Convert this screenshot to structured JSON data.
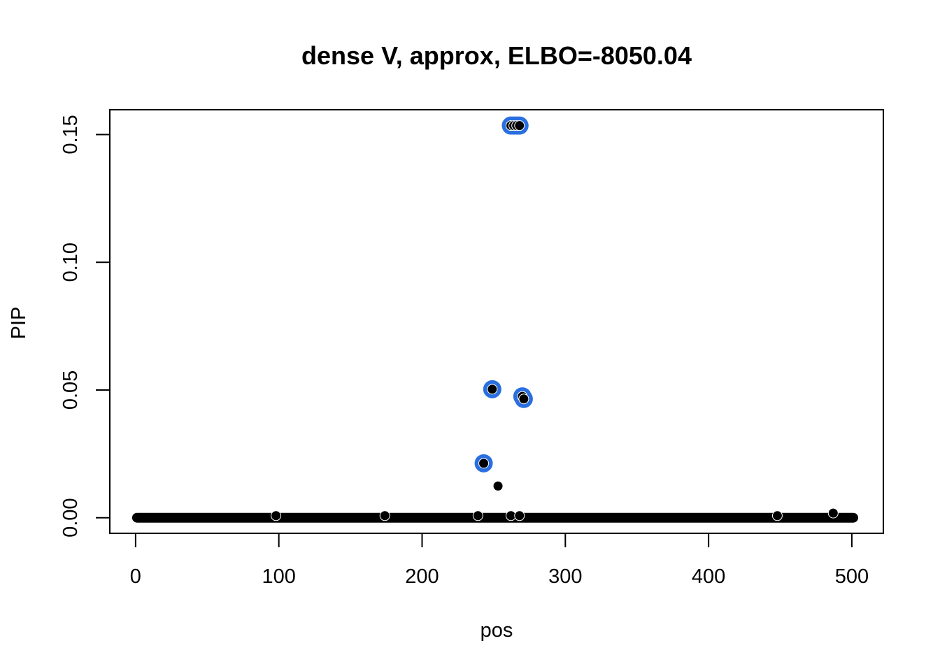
{
  "chart_data": {
    "type": "scatter",
    "title": "dense V, approx, ELBO=-8050.04",
    "xlabel": "pos",
    "ylabel": "PIP",
    "xlim": [
      -18,
      522
    ],
    "ylim": [
      -0.0061,
      0.1597
    ],
    "xticks": [
      0,
      100,
      200,
      300,
      400,
      500
    ],
    "xtick_labels": [
      "0",
      "100",
      "200",
      "300",
      "400",
      "500"
    ],
    "yticks": [
      0,
      0.05,
      0.1,
      0.15
    ],
    "ytick_labels": [
      "0.00",
      "0.05",
      "0.10",
      "0.15"
    ],
    "grid": false,
    "legend": "none",
    "colors": {
      "points": "#000000",
      "highlight": "#2a6fe0"
    },
    "baseline": {
      "x_start": 1,
      "x_end": 501,
      "y": 0
    },
    "series": [
      {
        "values": [
          {
            "x": 243,
            "y": 0.0213
          },
          {
            "x": 249,
            "y": 0.0503
          },
          {
            "x": 253,
            "y": 0.0124
          },
          {
            "x": 262,
            "y": 0.1535
          },
          {
            "x": 264,
            "y": 0.1535
          },
          {
            "x": 266,
            "y": 0.1535
          },
          {
            "x": 268,
            "y": 0.1535
          },
          {
            "x": 270,
            "y": 0.0475
          },
          {
            "x": 271,
            "y": 0.0465
          },
          {
            "x": 98,
            "y": 0.0008
          },
          {
            "x": 174,
            "y": 0.0008
          },
          {
            "x": 239,
            "y": 0.0008
          },
          {
            "x": 262,
            "y": 0.0008
          },
          {
            "x": 268,
            "y": 0.0008
          },
          {
            "x": 448,
            "y": 0.0008
          },
          {
            "x": 487,
            "y": 0.0018
          }
        ]
      },
      {
        "values": [
          {
            "x": 243,
            "y": 0.0213
          },
          {
            "x": 249,
            "y": 0.0503
          },
          {
            "x": 262,
            "y": 0.1535
          },
          {
            "x": 264,
            "y": 0.1535
          },
          {
            "x": 266,
            "y": 0.1535
          },
          {
            "x": 268,
            "y": 0.1535
          },
          {
            "x": 270,
            "y": 0.0475
          },
          {
            "x": 271,
            "y": 0.0465
          }
        ]
      }
    ]
  }
}
